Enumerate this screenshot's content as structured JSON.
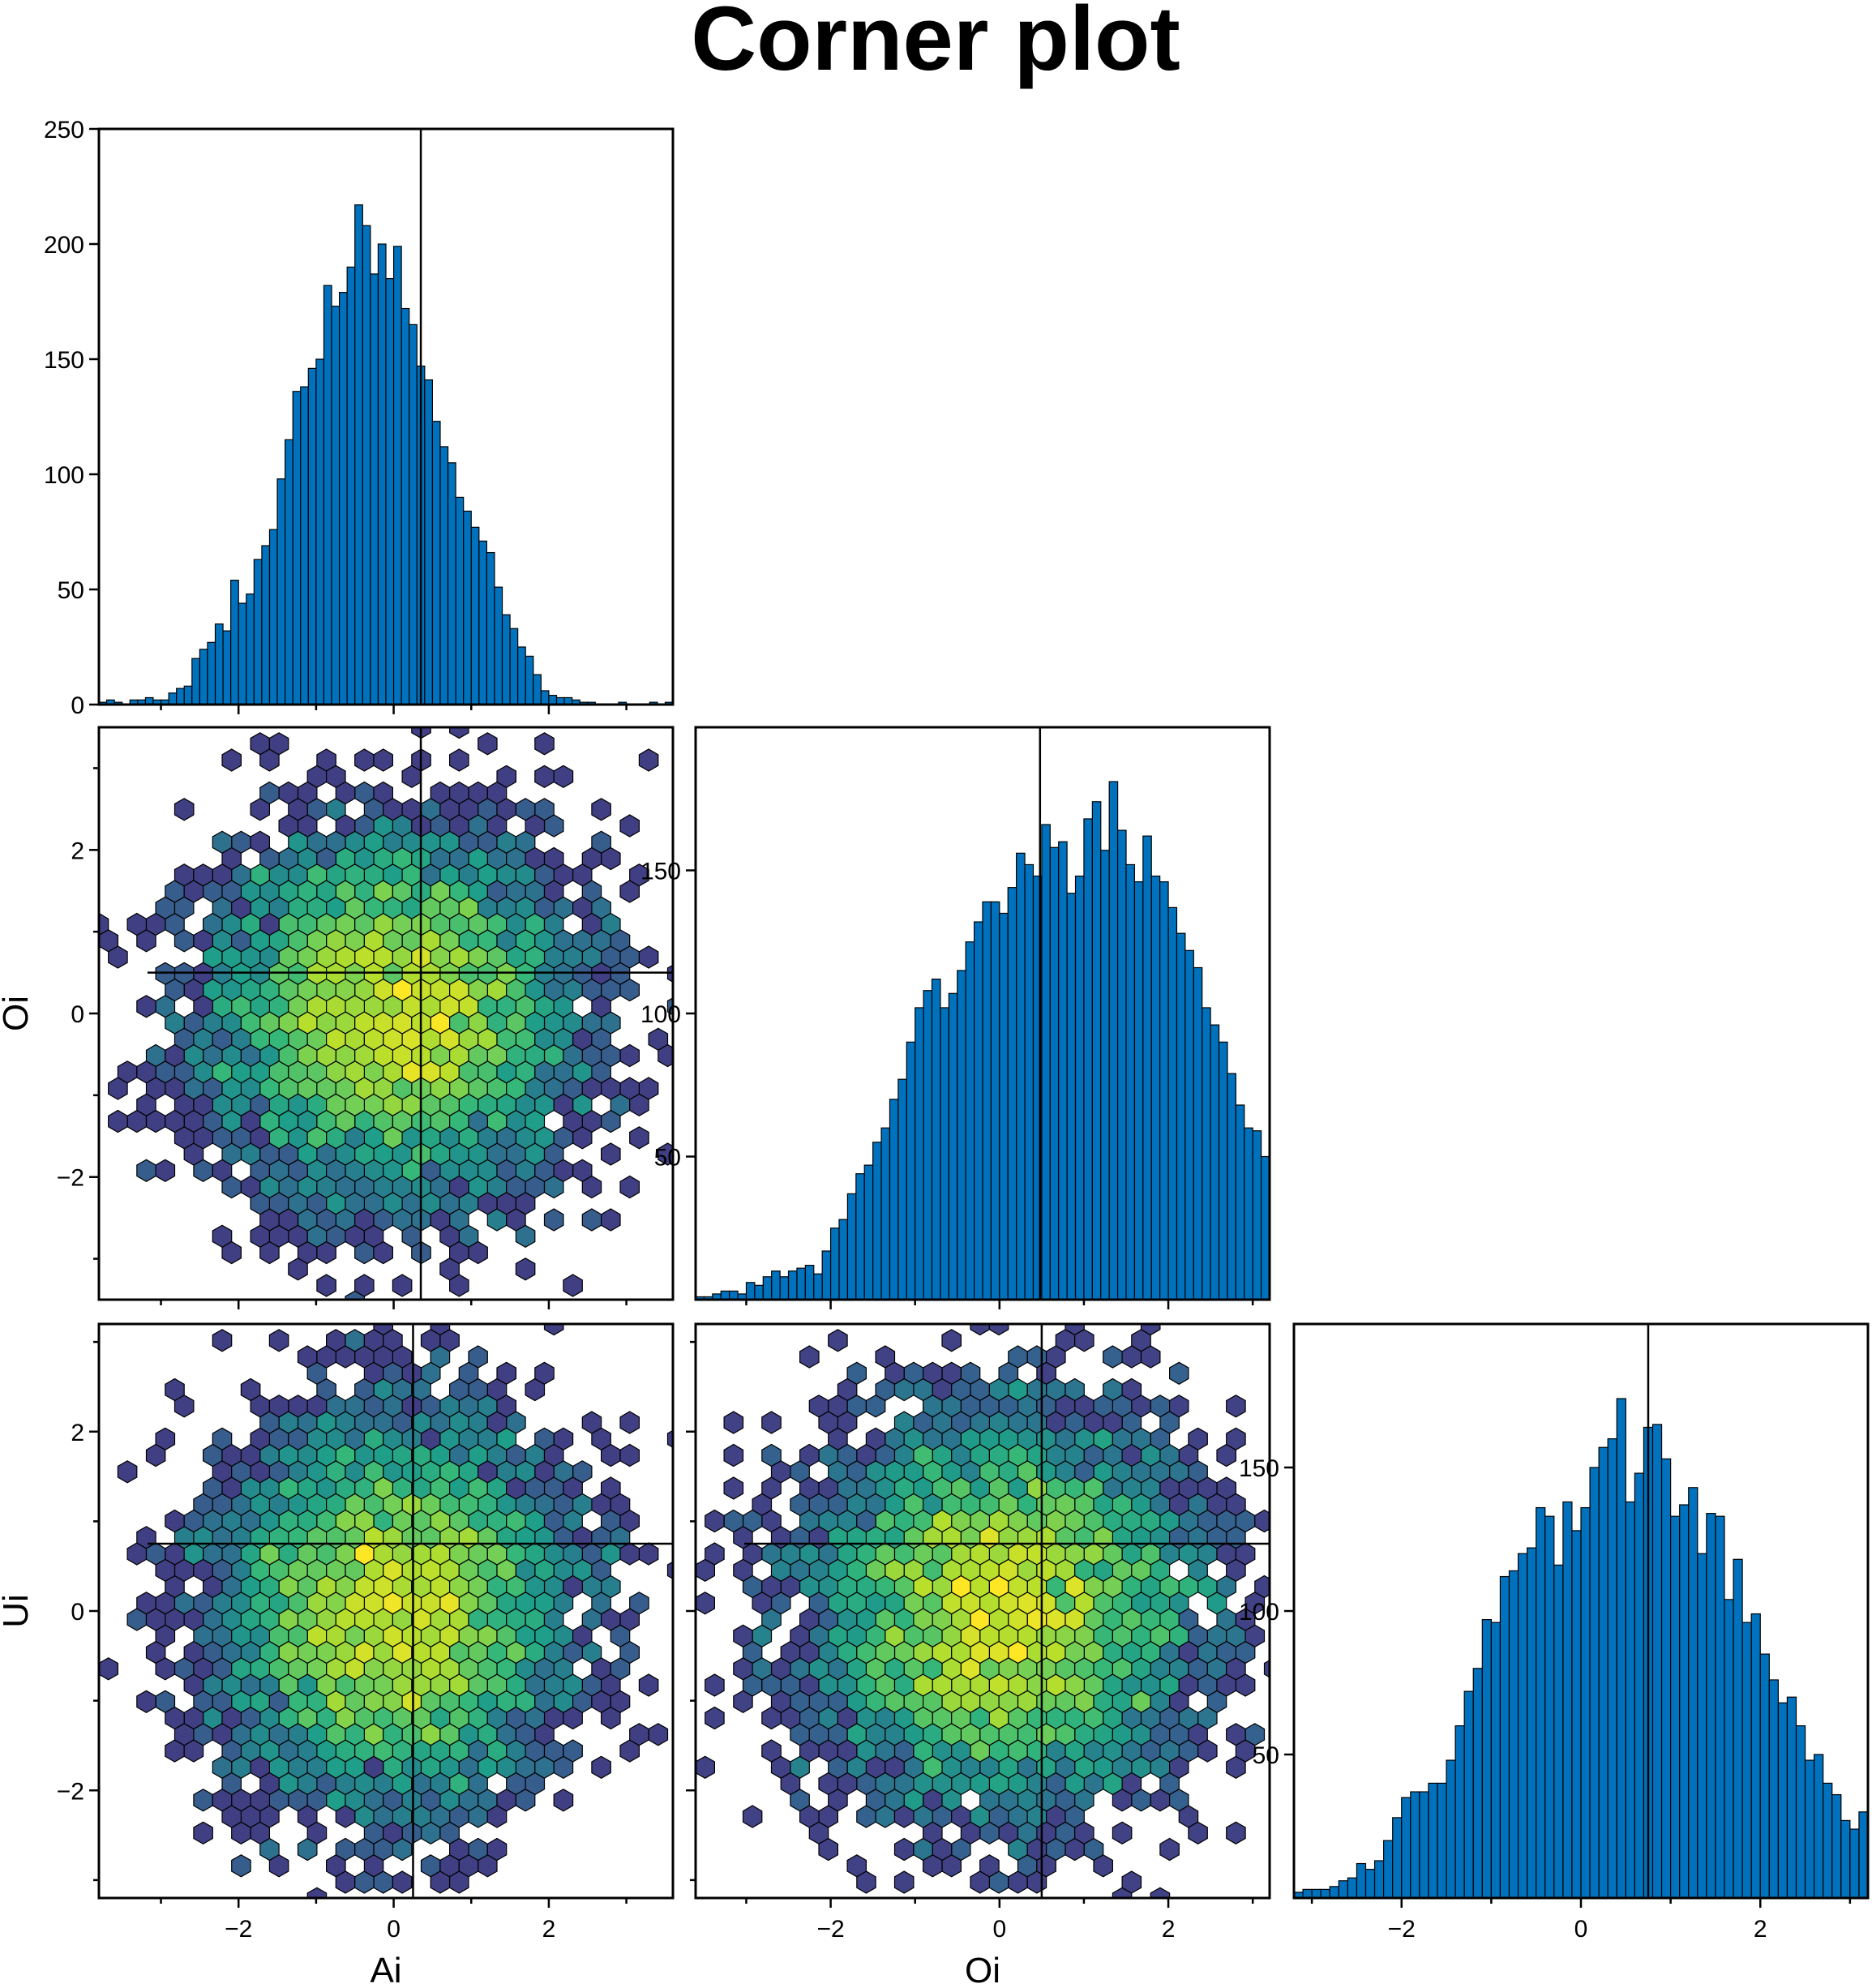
{
  "title": "Corner plot",
  "colors": {
    "histogram": "#0072bd",
    "colormap": "viridis"
  },
  "chart_data": [
    {
      "id": "hist-ai",
      "type": "bar",
      "xlim": [
        -3.8,
        3.6
      ],
      "ylim": [
        0,
        250
      ],
      "yticks": [
        0,
        50,
        100,
        150,
        200,
        250
      ],
      "ytick_labels": [
        "0",
        "50",
        "100",
        "150",
        "200",
        "250"
      ],
      "xticks": [
        -2,
        0,
        2
      ],
      "xtick_labels": [],
      "bin_start": -3.8,
      "bin_width": 0.1,
      "values": [
        1,
        2,
        1,
        0,
        2,
        2,
        3,
        2,
        2,
        5,
        7,
        8,
        20,
        24,
        27,
        35,
        32,
        54,
        44,
        48,
        63,
        69,
        76,
        98,
        115,
        136,
        138,
        146,
        150,
        182,
        173,
        179,
        190,
        217,
        208,
        187,
        200,
        185,
        199,
        172,
        165,
        147,
        141,
        123,
        112,
        105,
        90,
        84,
        77,
        71,
        66,
        51,
        39,
        33,
        25,
        21,
        13,
        6,
        4,
        3,
        3,
        2,
        1,
        1,
        0,
        0,
        0,
        1,
        0,
        0,
        0,
        1,
        0,
        1
      ],
      "marker_x": 0.35,
      "grid": false,
      "legend": "none"
    },
    {
      "id": "hexbin-ai-oi",
      "type": "heatmap",
      "x_variable": "Ai",
      "y_variable": "Oi",
      "xlim": [
        -3.8,
        3.6
      ],
      "ylim": [
        -3.5,
        3.5
      ],
      "xticks": [
        -2,
        0,
        2
      ],
      "xtick_labels": [],
      "yticks": [
        -2,
        0,
        2
      ],
      "ytick_labels": [
        "−2",
        "0",
        "2"
      ],
      "ylabel": "Oi",
      "sigma": [
        1.15,
        1.1
      ],
      "max_count": 55,
      "seed": 11,
      "marker_x": 0.35,
      "marker_y": 0.5,
      "grid": false,
      "legend": "none"
    },
    {
      "id": "hist-oi",
      "type": "bar",
      "xlim": [
        -3.6,
        3.2
      ],
      "ylim": [
        0,
        200
      ],
      "yticks": [
        50,
        100,
        150
      ],
      "ytick_labels": [
        "50",
        "100",
        "150"
      ],
      "xticks": [
        -2,
        0,
        2
      ],
      "xtick_labels": [],
      "bin_start": -3.6,
      "bin_width": 0.1,
      "values": [
        1,
        1,
        2,
        3,
        3,
        2,
        6,
        5,
        8,
        10,
        8,
        10,
        11,
        12,
        9,
        17,
        25,
        28,
        37,
        44,
        47,
        55,
        60,
        70,
        77,
        90,
        102,
        108,
        112,
        102,
        107,
        115,
        125,
        132,
        139,
        139,
        135,
        144,
        156,
        152,
        148,
        166,
        158,
        160,
        142,
        148,
        168,
        174,
        157,
        181,
        164,
        152,
        146,
        162,
        148,
        146,
        137,
        128,
        122,
        116,
        102,
        96,
        90,
        79,
        68,
        60,
        59,
        50,
        45,
        38,
        32,
        34,
        25,
        20,
        19,
        12,
        10,
        8,
        5,
        3,
        4,
        3,
        1,
        1
      ],
      "marker_x": 0.48,
      "grid": false,
      "legend": "none"
    },
    {
      "id": "hexbin-ai-ui",
      "type": "heatmap",
      "x_variable": "Ai",
      "y_variable": "Ui",
      "xlim": [
        -3.8,
        3.6
      ],
      "ylim": [
        -3.2,
        3.2
      ],
      "xticks": [
        -2,
        0,
        2
      ],
      "xtick_labels": [
        "−2",
        "0",
        "2"
      ],
      "yticks": [
        -2,
        0,
        2
      ],
      "ytick_labels": [
        "−2",
        "0",
        "2"
      ],
      "xlabel": "Ai",
      "ylabel": "Ui",
      "sigma": [
        1.1,
        1.05
      ],
      "max_count": 55,
      "seed": 23,
      "marker_x": 0.25,
      "marker_y": 0.75,
      "grid": false,
      "legend": "none"
    },
    {
      "id": "hexbin-oi-ui",
      "type": "heatmap",
      "x_variable": "Oi",
      "y_variable": "Ui",
      "xlim": [
        -3.6,
        3.2
      ],
      "ylim": [
        -3.2,
        3.2
      ],
      "xticks": [
        -2,
        0,
        2
      ],
      "xtick_labels": [
        "−2",
        "0",
        "2"
      ],
      "yticks": [
        -2,
        0,
        2
      ],
      "ytick_labels": [],
      "xlabel": "Oi",
      "sigma": [
        1.1,
        1.05
      ],
      "max_count": 55,
      "seed": 37,
      "marker_x": 0.5,
      "marker_y": 0.75,
      "grid": false,
      "legend": "none"
    },
    {
      "id": "hist-ui",
      "type": "bar",
      "xlim": [
        -3.2,
        3.2
      ],
      "ylim": [
        0,
        200
      ],
      "yticks": [
        50,
        100,
        150
      ],
      "ytick_labels": [
        "50",
        "100",
        "150"
      ],
      "xticks": [
        -2,
        0,
        2
      ],
      "xtick_labels": [
        "−2",
        "0",
        "2"
      ],
      "bin_start": -3.2,
      "bin_width": 0.1,
      "values": [
        2,
        3,
        3,
        3,
        4,
        6,
        7,
        12,
        10,
        13,
        20,
        28,
        35,
        37,
        37,
        40,
        40,
        48,
        60,
        72,
        80,
        97,
        96,
        112,
        114,
        120,
        122,
        136,
        133,
        116,
        138,
        128,
        136,
        150,
        157,
        160,
        174,
        138,
        148,
        164,
        165,
        153,
        133,
        137,
        143,
        120,
        134,
        133,
        104,
        118,
        96,
        99,
        85,
        76,
        68,
        70,
        60,
        48,
        50,
        40,
        36,
        27,
        24,
        30,
        25,
        21,
        17,
        14,
        10,
        5,
        6,
        5,
        3,
        2,
        1,
        1
      ],
      "marker_x": 0.75,
      "grid": false,
      "legend": "none"
    }
  ]
}
